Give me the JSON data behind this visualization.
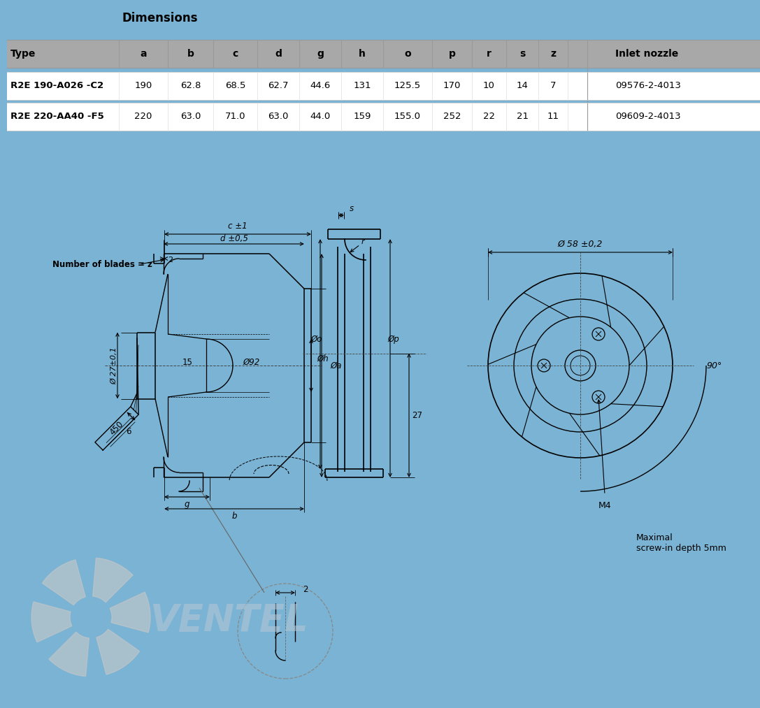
{
  "title": "Dimensions",
  "bg_color": "#7ab3d3",
  "table_header_bg": "#a8a8a8",
  "table_row_bg": "#ffffff",
  "col_headers": [
    "Type",
    "a",
    "b",
    "c",
    "d",
    "g",
    "h",
    "o",
    "p",
    "r",
    "s",
    "z",
    "Inlet nozzle"
  ],
  "row1": [
    "R2E 190-A026 -C2",
    "190",
    "62.8",
    "68.5",
    "62.7",
    "44.6",
    "131",
    "125.5",
    "170",
    "10",
    "14",
    "7",
    "09576-2-4013"
  ],
  "row2": [
    "R2E 220-AA40 -F5",
    "220",
    "63.0",
    "71.0",
    "63.0",
    "44.0",
    "159",
    "155.0",
    "252",
    "22",
    "21",
    "11",
    "09609-2-4013"
  ],
  "lc": "#000000",
  "diag_bg": "#ffffff",
  "wm_color": "#c8c8c8",
  "wm_text_color": "#b8c8d8",
  "labels": {
    "c_pm": "c ±1",
    "d_pm": "d ±0,5",
    "s_lbl": "s",
    "r_lbl": "r",
    "blades": "Number of blades = z",
    "phi27": "Ø 27±0,1",
    "phi92": "Ø92",
    "phih": "Øh",
    "phia": "Øa",
    "phio": "Øo",
    "phip": "Øp",
    "phi58": "Ø 58 ±0,2",
    "n2": "2",
    "n15": "15",
    "n450": "450",
    "n6": "6",
    "g_lbl": "g",
    "b_lbl": "b",
    "n27": "27",
    "deg90": "90°",
    "m4": "M4",
    "maxdepth": "Maximal\nscrew-in depth 5mm"
  }
}
